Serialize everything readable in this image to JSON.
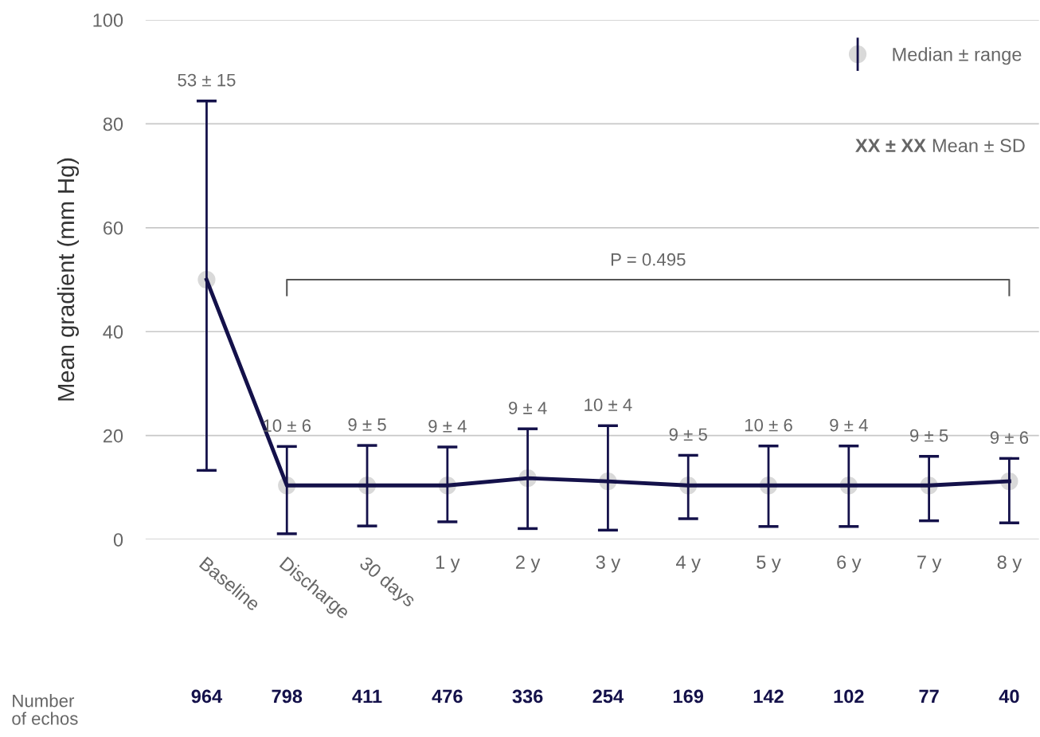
{
  "chart_data": {
    "type": "line",
    "ylabel": "Mean gradient (mm Hg)",
    "categories": [
      "Baseline",
      "Discharge",
      "30 days",
      "1 y",
      "2 y",
      "3 y",
      "4 y",
      "5 y",
      "6 y",
      "7 y",
      "8 y"
    ],
    "series": [
      {
        "name": "Median ± range",
        "color": "#14114a",
        "values": [
          50.0,
          10.4,
          10.4,
          10.4,
          11.8,
          11.2,
          10.4,
          10.4,
          10.4,
          10.4,
          11.2
        ],
        "errors": [
          [
            13.3,
            84.4
          ],
          [
            1.1,
            17.9
          ],
          [
            2.6,
            18.1
          ],
          [
            3.4,
            17.8
          ],
          [
            2.1,
            21.3
          ],
          [
            1.8,
            21.9
          ],
          [
            4.0,
            16.2
          ],
          [
            2.5,
            18.0
          ],
          [
            2.5,
            18.0
          ],
          [
            3.6,
            16.0
          ],
          [
            3.2,
            15.6
          ]
        ]
      }
    ],
    "ylim": [
      0,
      100
    ],
    "yticks": [
      0,
      20,
      40,
      60,
      80,
      100
    ],
    "grid": "y",
    "legend": "top right",
    "marker": "circle",
    "line_style": "solid",
    "annotations": [
      "53 ± 15",
      "10 ± 6",
      "9 ± 5",
      "9 ± 4",
      "9 ± 4",
      "10 ± 4",
      "9 ± 5",
      "10 ± 6",
      "9 ± 4",
      "9 ± 5",
      "9 ± 6",
      "P = 0.495",
      "XX ± XX",
      "Mean ± SD",
      "Number\nof echos",
      "964",
      "798",
      "411",
      "476",
      "336",
      "254",
      "169",
      "142",
      "102",
      "77",
      "40"
    ]
  }
}
